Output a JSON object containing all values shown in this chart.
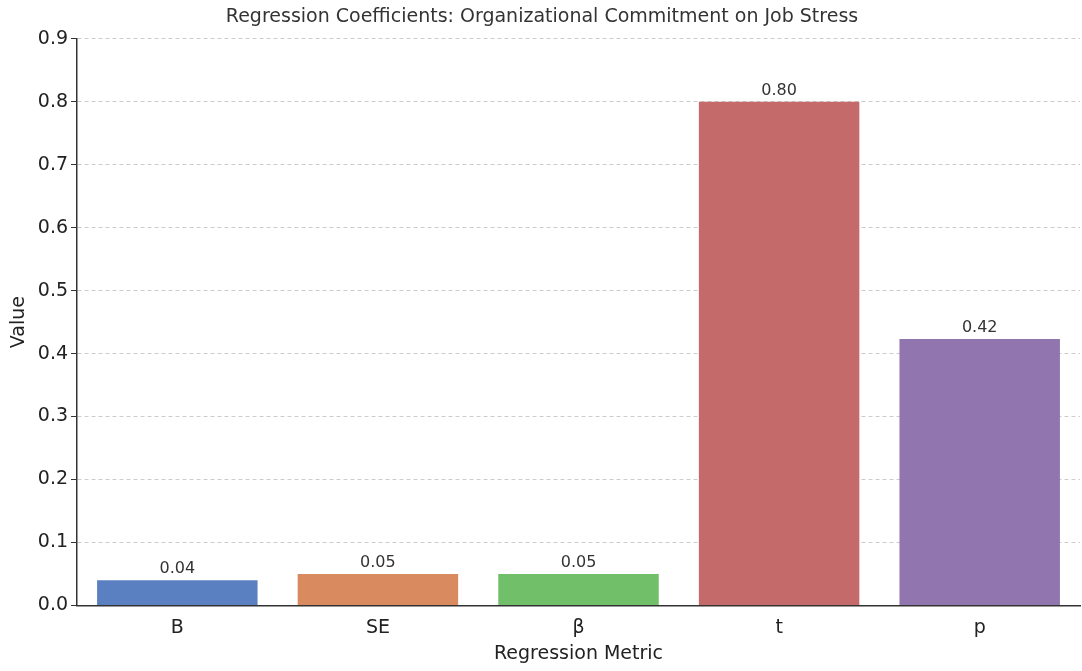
{
  "chart_data": {
    "type": "bar",
    "title": "Regression Coefficients: Organizational Commitment on Job Stress",
    "xlabel": "Regression Metric",
    "ylabel": "Value",
    "categories": [
      "B",
      "SE",
      "β",
      "t",
      "p"
    ],
    "values": [
      0.04,
      0.05,
      0.05,
      0.8,
      0.423
    ],
    "value_labels": [
      "0.04",
      "0.05",
      "0.05",
      "0.80",
      "0.42"
    ],
    "colors": [
      "#5b80c2",
      "#d98b5f",
      "#72bf6a",
      "#c46a6a",
      "#9175ae"
    ],
    "ylim": [
      0,
      0.9
    ],
    "yticks": [
      {
        "value": 0,
        "label": "0.0"
      },
      0.1,
      0.2,
      0.3,
      0.4,
      0.5,
      0.6,
      0.7,
      0.8,
      0.9
    ],
    "grid": "y"
  }
}
